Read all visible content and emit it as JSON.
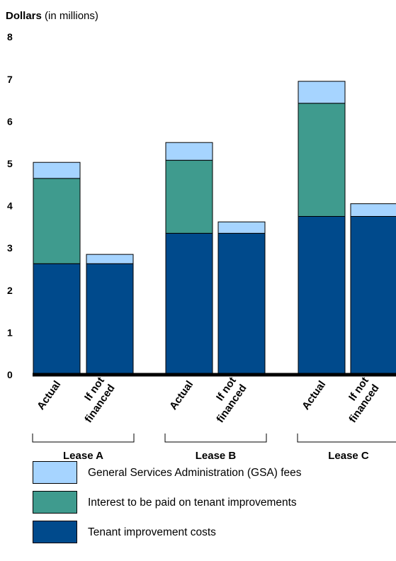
{
  "chart_data": {
    "type": "bar",
    "stacked": true,
    "ylabel": "Dollars",
    "ylabel_suffix": "(in millions)",
    "ylim": [
      0,
      8
    ],
    "yticks": [
      "0",
      "1",
      "2",
      "3",
      "4",
      "5",
      "6",
      "7",
      "8"
    ],
    "categories": [
      "Actual",
      "If not financed",
      "Actual",
      "If not financed",
      "Actual",
      "If not financed"
    ],
    "groups": [
      {
        "label": "Lease A"
      },
      {
        "label": "Lease B"
      },
      {
        "label": "Lease C"
      }
    ],
    "series": [
      {
        "name": "Tenant improvement costs",
        "color": "#004a8c",
        "values": [
          2.63,
          2.63,
          3.35,
          3.35,
          3.75,
          3.75
        ]
      },
      {
        "name": "Interest to be paid on tenant improvements",
        "color": "#3f9b8e",
        "values": [
          2.02,
          0,
          1.73,
          0,
          2.68,
          0
        ]
      },
      {
        "name": "General Services Administration (GSA) fees",
        "color": "#a6d4ff",
        "values": [
          0.38,
          0.22,
          0.42,
          0.27,
          0.52,
          0.3
        ]
      }
    ],
    "legend_order": [
      2,
      1,
      0
    ],
    "grid": false
  }
}
